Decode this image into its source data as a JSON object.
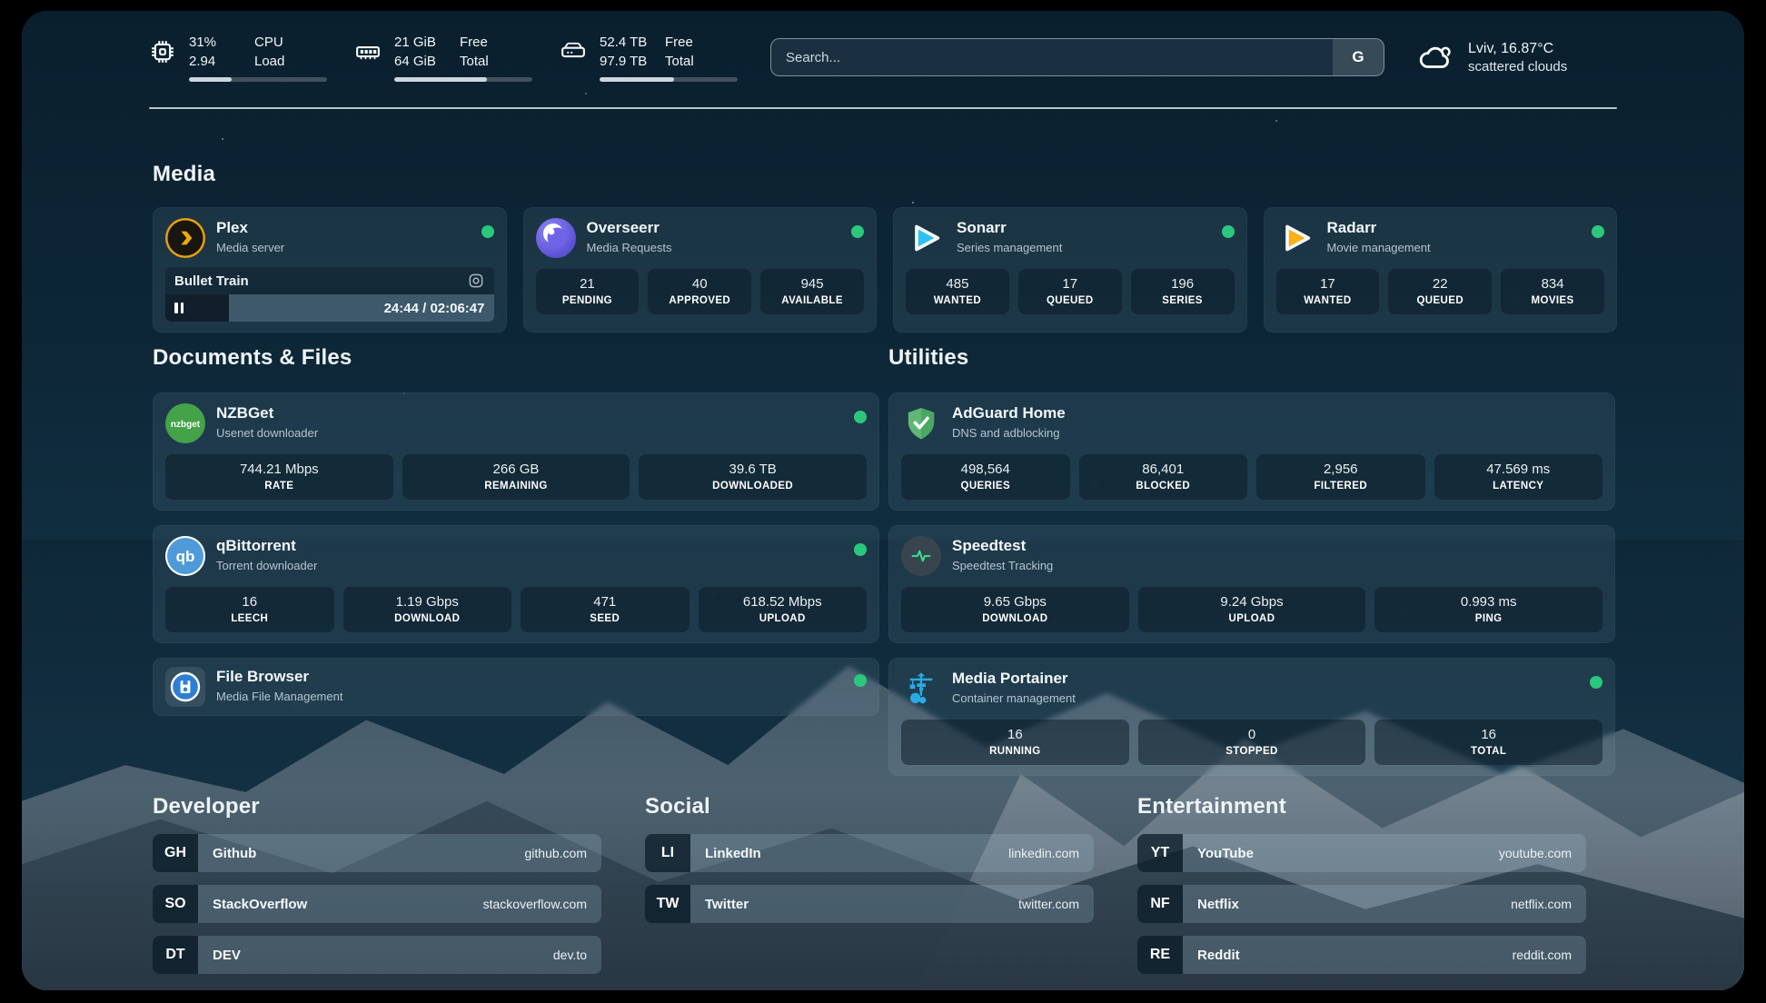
{
  "header": {
    "cpu": {
      "percent": "31%",
      "load_value": "2.94",
      "label_top": "CPU",
      "label_bottom": "Load",
      "progress": 31
    },
    "memory": {
      "free_value": "21 GiB",
      "total_value": "64 GiB",
      "label_top": "Free",
      "label_bottom": "Total",
      "progress": 67
    },
    "disk": {
      "free_value": "52.4 TB",
      "total_value": "97.9 TB",
      "label_top": "Free",
      "label_bottom": "Total",
      "progress": 54
    },
    "search": {
      "placeholder": "Search...",
      "engine_button": "G"
    },
    "weather": {
      "location": "Lviv, 16.87°C",
      "condition": "scattered clouds"
    }
  },
  "media": {
    "title": "Media",
    "plex": {
      "name": "Plex",
      "description": "Media server",
      "now_playing": "Bullet Train",
      "time": "24:44 / 02:06:47",
      "progress": 19.5
    },
    "overseerr": {
      "name": "Overseerr",
      "description": "Media Requests",
      "stats": [
        {
          "value": "21",
          "label": "PENDING"
        },
        {
          "value": "40",
          "label": "APPROVED"
        },
        {
          "value": "945",
          "label": "AVAILABLE"
        }
      ]
    },
    "sonarr": {
      "name": "Sonarr",
      "description": "Series management",
      "stats": [
        {
          "value": "485",
          "label": "WANTED"
        },
        {
          "value": "17",
          "label": "QUEUED"
        },
        {
          "value": "196",
          "label": "SERIES"
        }
      ]
    },
    "radarr": {
      "name": "Radarr",
      "description": "Movie management",
      "stats": [
        {
          "value": "17",
          "label": "WANTED"
        },
        {
          "value": "22",
          "label": "QUEUED"
        },
        {
          "value": "834",
          "label": "MOVIES"
        }
      ]
    }
  },
  "documents": {
    "title": "Documents & Files",
    "nzbget": {
      "name": "NZBGet",
      "description": "Usenet downloader",
      "stats": [
        {
          "value": "744.21 Mbps",
          "label": "RATE"
        },
        {
          "value": "266 GB",
          "label": "REMAINING"
        },
        {
          "value": "39.6 TB",
          "label": "DOWNLOADED"
        }
      ]
    },
    "qbittorrent": {
      "name": "qBittorrent",
      "description": "Torrent downloader",
      "stats": [
        {
          "value": "16",
          "label": "LEECH"
        },
        {
          "value": "1.19 Gbps",
          "label": "DOWNLOAD"
        },
        {
          "value": "471",
          "label": "SEED"
        },
        {
          "value": "618.52 Mbps",
          "label": "UPLOAD"
        }
      ]
    },
    "filebrowser": {
      "name": "File Browser",
      "description": "Media File Management"
    }
  },
  "utilities": {
    "title": "Utilities",
    "adguard": {
      "name": "AdGuard Home",
      "description": "DNS and adblocking",
      "stats": [
        {
          "value": "498,564",
          "label": "QUERIES"
        },
        {
          "value": "86,401",
          "label": "BLOCKED"
        },
        {
          "value": "2,956",
          "label": "FILTERED"
        },
        {
          "value": "47.569 ms",
          "label": "LATENCY"
        }
      ]
    },
    "speedtest": {
      "name": "Speedtest",
      "description": "Speedtest Tracking",
      "stats": [
        {
          "value": "9.65 Gbps",
          "label": "DOWNLOAD"
        },
        {
          "value": "9.24 Gbps",
          "label": "UPLOAD"
        },
        {
          "value": "0.993 ms",
          "label": "PING"
        }
      ]
    },
    "portainer": {
      "name": "Media Portainer",
      "description": "Container management",
      "stats": [
        {
          "value": "16",
          "label": "RUNNING"
        },
        {
          "value": "0",
          "label": "STOPPED"
        },
        {
          "value": "16",
          "label": "TOTAL"
        }
      ]
    }
  },
  "bookmarks": {
    "developer": {
      "title": "Developer",
      "links": [
        {
          "abbr": "GH",
          "label": "Github",
          "url": "github.com"
        },
        {
          "abbr": "SO",
          "label": "StackOverflow",
          "url": "stackoverflow.com"
        },
        {
          "abbr": "DT",
          "label": "DEV",
          "url": "dev.to"
        }
      ]
    },
    "social": {
      "title": "Social",
      "links": [
        {
          "abbr": "LI",
          "label": "LinkedIn",
          "url": "linkedin.com"
        },
        {
          "abbr": "TW",
          "label": "Twitter",
          "url": "twitter.com"
        }
      ]
    },
    "entertainment": {
      "title": "Entertainment",
      "links": [
        {
          "abbr": "YT",
          "label": "YouTube",
          "url": "youtube.com"
        },
        {
          "abbr": "NF",
          "label": "Netflix",
          "url": "netflix.com"
        },
        {
          "abbr": "RE",
          "label": "Reddit",
          "url": "reddit.com"
        }
      ]
    }
  },
  "colors": {
    "status_online": "#2bc77d",
    "plex_orange": "#e5a00d",
    "sonarr_blue": "#2fc2f2",
    "radarr_yellow": "#ffb012",
    "nzbget_green": "#44a248",
    "qbittorrent_blue": "#4f9bd9",
    "adguard_green": "#5fb875",
    "speedtest_green": "#35e08a",
    "portainer_blue": "#29abe2",
    "filebrowser_blue": "#2e7ed4"
  },
  "icons": {
    "header_cpu": "chip-icon",
    "header_memory": "ram-icon",
    "header_disk": "hard-drive-icon",
    "search_engine": "google-g-button",
    "weather": "scattered-clouds-icon",
    "plex_session": "camera-lens-icon",
    "plex_player": "pause-icon"
  }
}
